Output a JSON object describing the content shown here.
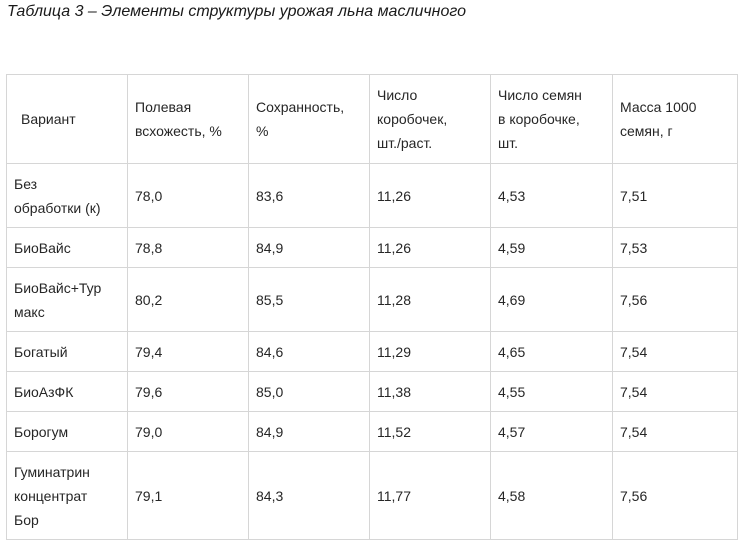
{
  "caption": "Таблица 3 – Элементы структуры урожая льна масличного",
  "table": {
    "headers": [
      {
        "lines": [
          "Вариант"
        ]
      },
      {
        "lines": [
          "Полевая",
          "всхожесть, %"
        ]
      },
      {
        "lines": [
          "Сохранность,",
          "%"
        ]
      },
      {
        "lines": [
          "Число",
          "коробочек,",
          "шт./раст."
        ]
      },
      {
        "lines": [
          "Число семян",
          "в коробочке,",
          "шт."
        ]
      },
      {
        "lines": [
          "Масса 1000",
          "семян, г"
        ]
      }
    ],
    "rows": [
      {
        "variant_lines": [
          "Без",
          "обработки (к)"
        ],
        "values": [
          "78,0",
          "83,6",
          "11,26",
          "4,53",
          "7,51"
        ]
      },
      {
        "variant_lines": [
          "БиоВайс"
        ],
        "values": [
          "78,8",
          "84,9",
          "11,26",
          "4,59",
          "7,53"
        ]
      },
      {
        "variant_lines": [
          "БиоВайс+Тур",
          "макс"
        ],
        "values": [
          "80,2",
          "85,5",
          "11,28",
          "4,69",
          "7,56"
        ]
      },
      {
        "variant_lines": [
          "Богатый"
        ],
        "values": [
          "79,4",
          "84,6",
          "11,29",
          "4,65",
          "7,54"
        ]
      },
      {
        "variant_lines": [
          "БиоАзФК"
        ],
        "values": [
          "79,6",
          "85,0",
          "11,38",
          "4,55",
          "7,54"
        ]
      },
      {
        "variant_lines": [
          "Борогум"
        ],
        "values": [
          "79,0",
          "84,9",
          "11,52",
          "4,57",
          "7,54"
        ]
      },
      {
        "variant_lines": [
          "Гуминатрин",
          "концентрат",
          "Бор"
        ],
        "values": [
          "79,1",
          "84,3",
          "11,77",
          "4,58",
          "7,56"
        ]
      }
    ]
  },
  "colors": {
    "border": "#d6d6d6",
    "text": "#262626",
    "background": "#ffffff"
  }
}
